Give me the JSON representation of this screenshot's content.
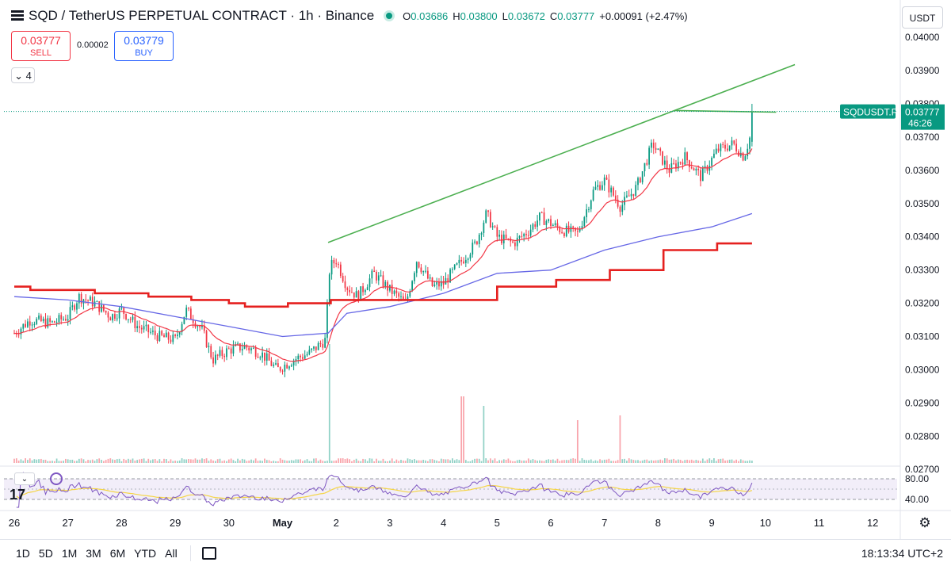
{
  "header": {
    "title": "SQD / TetherUS PERPETUAL CONTRACT · 1h · Binance",
    "ohlc": {
      "o_label": "O",
      "o": "0.03686",
      "h_label": "H",
      "h": "0.03800",
      "l_label": "L",
      "l": "0.03672",
      "c_label": "C",
      "c": "0.03777",
      "change": "+0.00091 (+2.47%)"
    }
  },
  "trade": {
    "sell_price": "0.03777",
    "sell_label": "SELL",
    "buy_price": "0.03779",
    "buy_label": "BUY",
    "spread": "0.00002"
  },
  "indicator_toggle": "4",
  "currency": "USDT",
  "colors": {
    "up": "#089981",
    "down": "#f23645",
    "ema": "#f23645",
    "sma": "#6667e6",
    "stair": "#e5201f",
    "trend": "#4caf50",
    "rsi": "#7e57c2",
    "rsi_ma": "#f5d547"
  },
  "price_tag": {
    "symbol": "SQDUSDT.P",
    "price": "0.03777",
    "countdown": "46:26"
  },
  "bottom_bar": {
    "ranges": [
      "1D",
      "5D",
      "1M",
      "3M",
      "6M",
      "YTD",
      "All"
    ],
    "time": "18:13:34 UTC+2"
  },
  "chart_data": {
    "type": "candlestick",
    "x_axis": {
      "tick_labels": [
        "26",
        "27",
        "28",
        "29",
        "30",
        "May",
        "2",
        "3",
        "4",
        "5",
        "6",
        "7",
        "8",
        "9",
        "10",
        "11",
        "12"
      ],
      "unit": "day"
    },
    "y_axis": {
      "tick_labels": [
        "0.04000",
        "0.03900",
        "0.03800",
        "0.03700",
        "0.03600",
        "0.03500",
        "0.03400",
        "0.03300",
        "0.03200",
        "0.03100",
        "0.03000",
        "0.02900",
        "0.02800",
        "0.02700"
      ],
      "range": [
        0.0266,
        0.0406
      ]
    },
    "close_series": {
      "day_start": 26,
      "step_hours": 1,
      "knots": [
        [
          26.0,
          0.0311
        ],
        [
          26.3,
          0.0315
        ],
        [
          26.7,
          0.0314
        ],
        [
          27.0,
          0.0316
        ],
        [
          27.2,
          0.0322
        ],
        [
          27.5,
          0.032
        ],
        [
          27.8,
          0.0316
        ],
        [
          28.0,
          0.0318
        ],
        [
          28.3,
          0.0313
        ],
        [
          28.7,
          0.031
        ],
        [
          29.0,
          0.0309
        ],
        [
          29.2,
          0.0318
        ],
        [
          29.5,
          0.0312
        ],
        [
          29.7,
          0.0303
        ],
        [
          30.0,
          0.0306
        ],
        [
          30.3,
          0.0307
        ],
        [
          30.6,
          0.0305
        ],
        [
          30.9,
          0.03
        ],
        [
          31.2,
          0.0303
        ],
        [
          31.5,
          0.0305
        ],
        [
          31.8,
          0.0309
        ],
        [
          31.88,
          0.0331
        ],
        [
          32.0,
          0.0333
        ],
        [
          32.2,
          0.0325
        ],
        [
          32.4,
          0.0322
        ],
        [
          32.7,
          0.0329
        ],
        [
          33.0,
          0.0324
        ],
        [
          33.3,
          0.032
        ],
        [
          33.5,
          0.0333
        ],
        [
          33.8,
          0.0325
        ],
        [
          34.0,
          0.0326
        ],
        [
          34.3,
          0.0332
        ],
        [
          34.6,
          0.0338
        ],
        [
          34.8,
          0.0347
        ],
        [
          35.0,
          0.034
        ],
        [
          35.3,
          0.0338
        ],
        [
          35.6,
          0.0342
        ],
        [
          35.8,
          0.0346
        ],
        [
          36.2,
          0.0342
        ],
        [
          36.5,
          0.0341
        ],
        [
          36.8,
          0.0354
        ],
        [
          37.0,
          0.0357
        ],
        [
          37.3,
          0.0349
        ],
        [
          37.6,
          0.0355
        ],
        [
          37.9,
          0.0368
        ],
        [
          38.2,
          0.036
        ],
        [
          38.5,
          0.0364
        ],
        [
          38.8,
          0.0358
        ],
        [
          39.1,
          0.0366
        ],
        [
          39.4,
          0.0368
        ],
        [
          39.6,
          0.0364
        ],
        [
          39.75,
          0.0372
        ],
        [
          39.78,
          0.03777
        ]
      ]
    },
    "volume_spikes": [
      [
        31.88,
        13.5
      ],
      [
        34.35,
        7
      ],
      [
        34.75,
        6
      ],
      [
        36.5,
        4.5
      ],
      [
        37.3,
        5
      ]
    ],
    "lines": {
      "sma_knots": [
        [
          26.0,
          0.0322
        ],
        [
          27.0,
          0.0321
        ],
        [
          28.0,
          0.0319
        ],
        [
          29.0,
          0.0316
        ],
        [
          30.0,
          0.0313
        ],
        [
          31.0,
          0.031
        ],
        [
          31.85,
          0.0311
        ],
        [
          32.2,
          0.0317
        ],
        [
          33.0,
          0.0319
        ],
        [
          34.0,
          0.0323
        ],
        [
          35.0,
          0.0329
        ],
        [
          36.0,
          0.033
        ],
        [
          37.0,
          0.0336
        ],
        [
          38.0,
          0.034
        ],
        [
          39.0,
          0.0343
        ],
        [
          39.75,
          0.0347
        ]
      ],
      "stair_steps": [
        [
          26.0,
          0.0325
        ],
        [
          26.3,
          0.0324
        ],
        [
          27.5,
          0.0323
        ],
        [
          28.5,
          0.0322
        ],
        [
          29.3,
          0.0321
        ],
        [
          30.0,
          0.032
        ],
        [
          30.3,
          0.0319
        ],
        [
          31.1,
          0.032
        ],
        [
          31.9,
          0.0321
        ],
        [
          33.4,
          0.0321
        ],
        [
          35.0,
          0.0325
        ],
        [
          36.1,
          0.0327
        ],
        [
          37.1,
          0.033
        ],
        [
          38.1,
          0.0336
        ],
        [
          39.1,
          0.0338
        ],
        [
          39.75,
          0.0338
        ]
      ],
      "trend_upper": [
        [
          31.85,
          0.03383
        ],
        [
          40.55,
          0.03918
        ]
      ],
      "trend_flat": [
        [
          38.3,
          0.0378
        ],
        [
          40.2,
          0.03775
        ]
      ]
    },
    "rsi": {
      "tick_labels": [
        "80.00",
        "40.00"
      ],
      "range": [
        0,
        100
      ]
    }
  }
}
